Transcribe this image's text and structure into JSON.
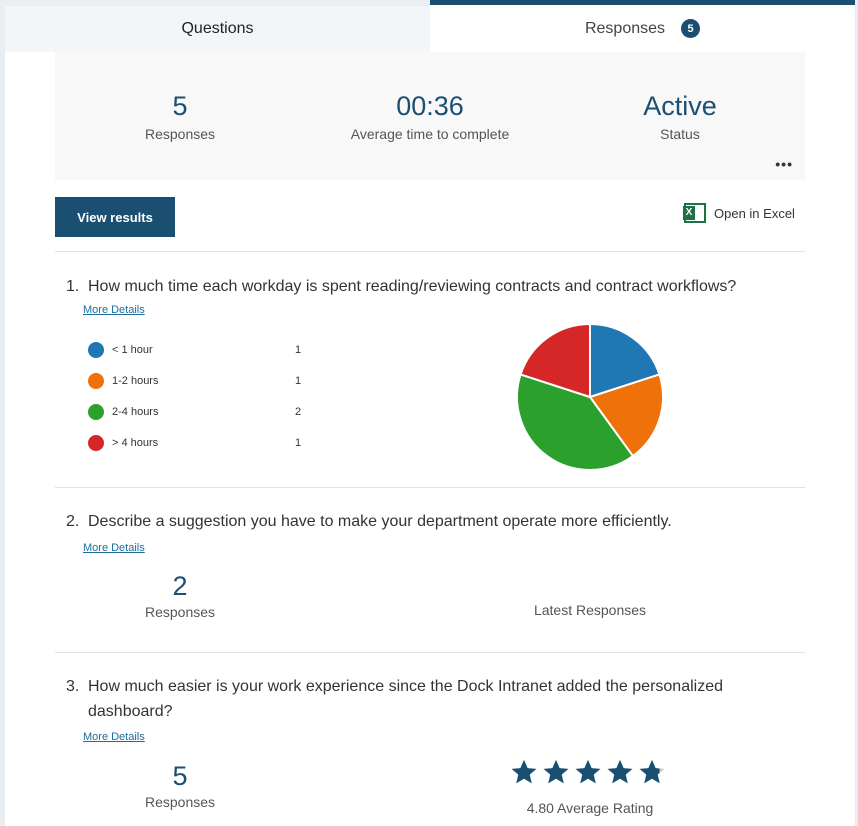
{
  "tabs": {
    "questions": "Questions",
    "responses": "Responses",
    "responses_count": "5"
  },
  "summary": {
    "responses_value": "5",
    "responses_label": "Responses",
    "avg_time_value": "00:36",
    "avg_time_label": "Average time to complete",
    "status_value": "Active",
    "status_label": "Status",
    "more": "•••"
  },
  "actions": {
    "view_results": "View results",
    "open_excel": "Open in Excel",
    "excel_icon": "X"
  },
  "questions": [
    {
      "number": "1.",
      "text": "How much time each workday is spent reading/reviewing contracts and contract workflows?",
      "more_details": "More Details",
      "chart_data": {
        "type": "pie",
        "categories": [
          "< 1 hour",
          "1-2 hours",
          "2-4 hours",
          "> 4 hours"
        ],
        "values": [
          1,
          1,
          2,
          1
        ],
        "colors": [
          "#1f77b4",
          "#ef7109",
          "#2ca02c",
          "#d62728"
        ],
        "legend": "left"
      }
    },
    {
      "number": "2.",
      "text": "Describe a suggestion you have to make your department operate more efficiently.",
      "more_details": "More Details",
      "responses_value": "2",
      "responses_label": "Responses",
      "latest_label": "Latest Responses"
    },
    {
      "number": "3.",
      "text": "How much easier is your work experience since the Dock Intranet added the personalized dashboard?",
      "more_details": "More Details",
      "responses_value": "5",
      "responses_label": "Responses",
      "rating": 4.8,
      "max_rating": 5,
      "rating_label": "4.80 Average Rating"
    }
  ]
}
